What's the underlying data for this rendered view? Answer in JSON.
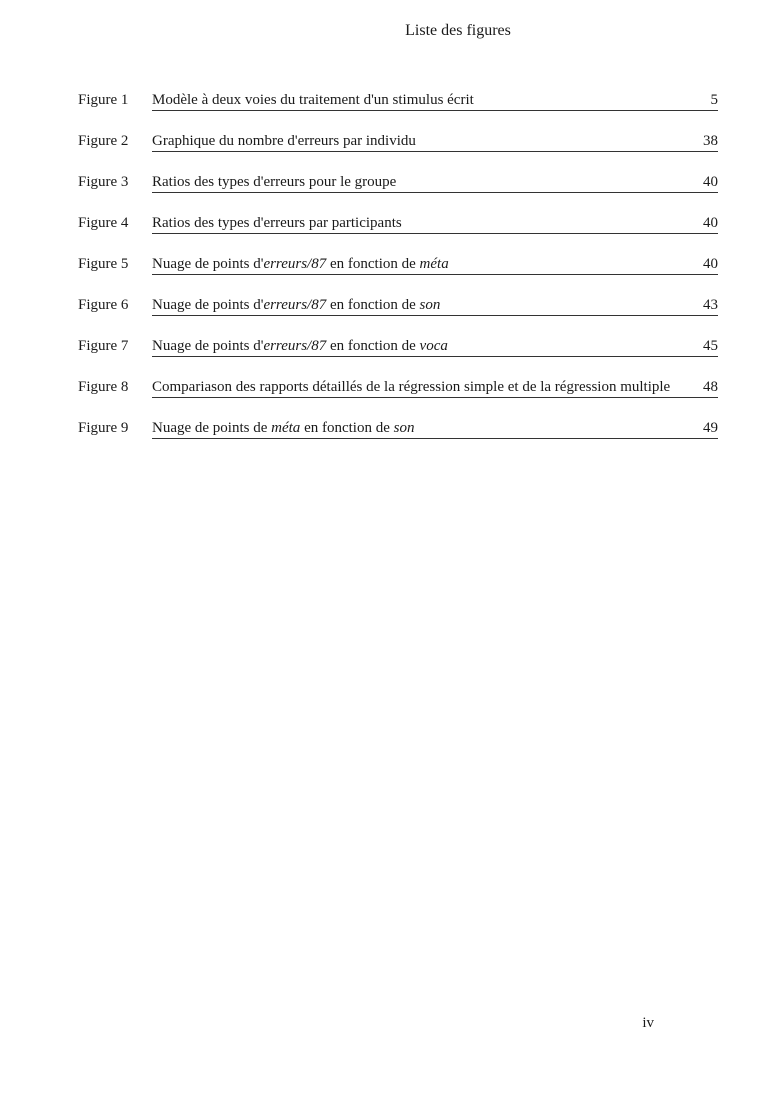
{
  "title": "Liste des figures",
  "page_number": "iv",
  "entries": [
    {
      "label": "Figure 1",
      "desc_html": "Modèle à deux voies du traitement d'un stimulus écrit",
      "page": "5"
    },
    {
      "label": "Figure 2",
      "desc_html": "Graphique du nombre d'erreurs par individu",
      "page": "38"
    },
    {
      "label": "Figure 3",
      "desc_html": "Ratios des types d'erreurs pour le groupe",
      "page": "40"
    },
    {
      "label": "Figure 4",
      "desc_html": "Ratios des types d'erreurs par participants",
      "page": "40"
    },
    {
      "label": "Figure 5",
      "desc_html": "Nuage de points d'<span class=\"italic\">erreurs/87</span> en fonction de <span class=\"italic\">méta</span>",
      "page": "40"
    },
    {
      "label": "Figure 6",
      "desc_html": "Nuage de points d'<span class=\"italic\">erreurs/87</span> en fonction de <span class=\"italic\">son</span>",
      "page": "43"
    },
    {
      "label": "Figure 7",
      "desc_html": "Nuage de points d'<span class=\"italic\">erreurs/87</span> en fonction de <span class=\"italic\">voca</span>",
      "page": "45"
    },
    {
      "label": "Figure 8",
      "desc_html": "Compariason des rapports détaillés de la régression simple et de la régression multiple",
      "page": "48"
    },
    {
      "label": "Figure 9",
      "desc_html": "Nuage de points de <span class=\"italic\">méta</span> en fonction de <span class=\"italic\">son</span>",
      "page": "49"
    }
  ]
}
